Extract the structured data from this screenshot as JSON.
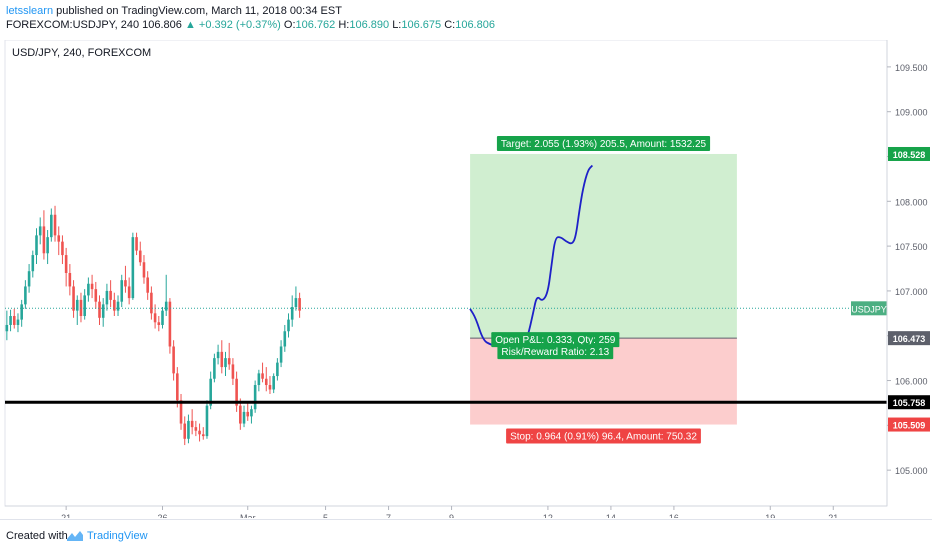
{
  "header": {
    "author": "letsslearn",
    "published": "published on TradingView.com, March 11, 2018 00:34 EST",
    "symbol": "FOREXCOM:USDJPY, 240",
    "last": "106.806",
    "change": "▲ +0.392 (+0.37%)",
    "o_label": "O:",
    "o_value": "106.762",
    "h_label": "H:",
    "h_value": "106.890",
    "l_label": "L:",
    "l_value": "106.675",
    "c_label": "C:",
    "c_value": "106.806"
  },
  "footer": {
    "created": "Created with",
    "brand": "TradingView"
  },
  "chart_data": {
    "type": "candlestick",
    "title": "USD/JPY, 240, FOREXCOM",
    "ylim": [
      104.6,
      109.8
    ],
    "y_ticks": [
      "105.000",
      "105.500",
      "106.000",
      "106.500",
      "107.000",
      "107.500",
      "108.000",
      "108.500",
      "109.000",
      "109.500"
    ],
    "x_ticks": [
      {
        "label": "21",
        "idx": 16
      },
      {
        "label": "26",
        "idx": 42
      },
      {
        "label": "Mar",
        "idx": 65
      },
      {
        "label": "5",
        "idx": 86
      },
      {
        "label": "7",
        "idx": 103
      },
      {
        "label": "9",
        "idx": 120
      },
      {
        "label": "12",
        "idx": 146
      },
      {
        "label": "14",
        "idx": 163
      },
      {
        "label": "16",
        "idx": 180
      },
      {
        "label": "19",
        "idx": 206
      },
      {
        "label": "21",
        "idx": 223
      }
    ],
    "bar_count": 238,
    "candles": [
      [
        106.55,
        106.78,
        106.45,
        106.62
      ],
      [
        106.62,
        106.79,
        106.55,
        106.72
      ],
      [
        106.72,
        106.8,
        106.58,
        106.62
      ],
      [
        106.62,
        106.75,
        106.54,
        106.68
      ],
      [
        106.68,
        106.9,
        106.6,
        106.85
      ],
      [
        106.85,
        107.12,
        106.8,
        107.05
      ],
      [
        107.05,
        107.3,
        106.98,
        107.22
      ],
      [
        107.22,
        107.45,
        107.15,
        107.4
      ],
      [
        107.4,
        107.7,
        107.3,
        107.62
      ],
      [
        107.62,
        107.82,
        107.52,
        107.72
      ],
      [
        107.72,
        107.9,
        107.35,
        107.42
      ],
      [
        107.42,
        107.68,
        107.3,
        107.6
      ],
      [
        107.6,
        107.92,
        107.55,
        107.85
      ],
      [
        107.85,
        107.95,
        107.55,
        107.62
      ],
      [
        107.62,
        107.72,
        107.4,
        107.55
      ],
      [
        107.55,
        107.62,
        107.3,
        107.4
      ],
      [
        107.4,
        107.48,
        107.05,
        107.2
      ],
      [
        107.2,
        107.3,
        106.95,
        107.05
      ],
      [
        107.05,
        107.12,
        106.7,
        106.78
      ],
      [
        106.78,
        106.95,
        106.62,
        106.9
      ],
      [
        106.9,
        106.98,
        106.65,
        106.72
      ],
      [
        106.72,
        107.02,
        106.68,
        106.95
      ],
      [
        106.95,
        107.15,
        106.88,
        107.08
      ],
      [
        107.08,
        107.18,
        106.92,
        107.02
      ],
      [
        107.02,
        107.1,
        106.8,
        106.88
      ],
      [
        106.88,
        106.95,
        106.62,
        106.7
      ],
      [
        106.7,
        106.92,
        106.6,
        106.85
      ],
      [
        106.85,
        107.08,
        106.78,
        107.0
      ],
      [
        107.0,
        107.12,
        106.82,
        106.9
      ],
      [
        106.9,
        106.98,
        106.72,
        106.78
      ],
      [
        106.78,
        106.95,
        106.72,
        106.88
      ],
      [
        106.88,
        107.18,
        106.82,
        107.12
      ],
      [
        107.12,
        107.28,
        106.98,
        107.05
      ],
      [
        107.05,
        107.15,
        106.85,
        106.92
      ],
      [
        106.92,
        107.65,
        106.9,
        107.6
      ],
      [
        107.6,
        107.65,
        107.4,
        107.45
      ],
      [
        107.45,
        107.55,
        107.28,
        107.32
      ],
      [
        107.32,
        107.4,
        107.08,
        107.15
      ],
      [
        107.15,
        107.22,
        106.9,
        106.98
      ],
      [
        106.98,
        107.05,
        106.68,
        106.75
      ],
      [
        106.75,
        106.85,
        106.58,
        106.65
      ],
      [
        106.65,
        106.72,
        106.55,
        106.62
      ],
      [
        106.62,
        106.82,
        106.58,
        106.78
      ],
      [
        106.78,
        107.18,
        106.72,
        106.88
      ],
      [
        106.88,
        106.92,
        106.3,
        106.38
      ],
      [
        106.38,
        106.45,
        106.0,
        106.08
      ],
      [
        106.08,
        106.15,
        105.7,
        105.78
      ],
      [
        105.78,
        105.85,
        105.45,
        105.52
      ],
      [
        105.52,
        105.6,
        105.28,
        105.35
      ],
      [
        105.35,
        105.62,
        105.3,
        105.55
      ],
      [
        105.55,
        105.68,
        105.4,
        105.48
      ],
      [
        105.48,
        105.55,
        105.38,
        105.44
      ],
      [
        105.44,
        105.52,
        105.32,
        105.4
      ],
      [
        105.4,
        105.48,
        105.34,
        105.38
      ],
      [
        105.38,
        105.78,
        105.35,
        105.72
      ],
      [
        105.72,
        106.1,
        105.68,
        106.02
      ],
      [
        106.02,
        106.3,
        105.98,
        106.25
      ],
      [
        106.25,
        106.4,
        106.18,
        106.32
      ],
      [
        106.32,
        106.45,
        106.08,
        106.15
      ],
      [
        106.15,
        106.32,
        106.05,
        106.25
      ],
      [
        106.25,
        106.42,
        106.12,
        106.18
      ],
      [
        106.18,
        106.25,
        105.95,
        106.02
      ],
      [
        106.02,
        106.1,
        105.65,
        105.72
      ],
      [
        105.72,
        105.8,
        105.45,
        105.52
      ],
      [
        105.52,
        105.72,
        105.48,
        105.65
      ],
      [
        105.65,
        105.75,
        105.55,
        105.6
      ],
      [
        105.6,
        105.72,
        105.52,
        105.68
      ],
      [
        105.68,
        106.0,
        105.64,
        105.95
      ],
      [
        105.95,
        106.12,
        105.88,
        106.08
      ],
      [
        106.08,
        106.2,
        105.98,
        106.02
      ],
      [
        106.02,
        106.15,
        105.88,
        105.95
      ],
      [
        105.95,
        106.05,
        105.85,
        105.9
      ],
      [
        105.9,
        106.08,
        105.86,
        106.05
      ],
      [
        106.05,
        106.25,
        106.0,
        106.2
      ],
      [
        106.2,
        106.45,
        106.15,
        106.38
      ],
      [
        106.38,
        106.62,
        106.32,
        106.55
      ],
      [
        106.55,
        106.75,
        106.48,
        106.68
      ],
      [
        106.68,
        106.95,
        106.6,
        106.82
      ],
      [
        106.82,
        107.05,
        106.78,
        106.92
      ],
      [
        106.92,
        106.98,
        106.7,
        106.78
      ]
    ],
    "last_price": 106.806,
    "last_price_label": "USDJPY",
    "horizontal_line": 105.758,
    "price_badges": [
      {
        "value": "108.528",
        "color": "#16a34a"
      },
      {
        "value": "106.473",
        "color": "#5d606b"
      },
      {
        "value": "105.758",
        "color": "#000000"
      },
      {
        "value": "105.509",
        "color": "#ef4444"
      }
    ],
    "position": {
      "entry": 106.473,
      "target": 108.528,
      "stop": 105.509,
      "start_idx": 125,
      "end_idx": 197,
      "target_label": "Target: 2.055 (1.93%) 205.5, Amount: 1532.25",
      "pnl_label": "Open P&L: 0.333, Qty: 259",
      "rr_label": "Risk/Reward Ratio: 2.13",
      "stop_label": "Stop: 0.964 (0.91%) 96.4, Amount: 750.32"
    },
    "projection": [
      [
        125.0,
        106.8
      ],
      [
        126.5,
        106.7
      ],
      [
        128.5,
        106.45
      ],
      [
        130.5,
        106.4
      ],
      [
        133.0,
        106.38
      ],
      [
        135.5,
        106.37
      ],
      [
        137.5,
        106.36
      ],
      [
        138.8,
        106.32
      ],
      [
        140.5,
        106.48
      ],
      [
        142.0,
        106.75
      ],
      [
        143.0,
        106.95
      ],
      [
        144.5,
        106.88
      ],
      [
        146.0,
        106.98
      ],
      [
        147.0,
        107.3
      ],
      [
        148.0,
        107.6
      ],
      [
        149.5,
        107.6
      ],
      [
        151.0,
        107.55
      ],
      [
        152.5,
        107.52
      ],
      [
        153.5,
        107.6
      ],
      [
        154.5,
        107.9
      ],
      [
        155.5,
        108.15
      ],
      [
        156.8,
        108.35
      ],
      [
        158.0,
        108.4
      ]
    ],
    "colors": {
      "up": "#26a69a",
      "down": "#ef5350",
      "projection": "#1e20c8",
      "target_zone": "#c8ebc8",
      "stop_zone": "#fcc4c4"
    }
  }
}
